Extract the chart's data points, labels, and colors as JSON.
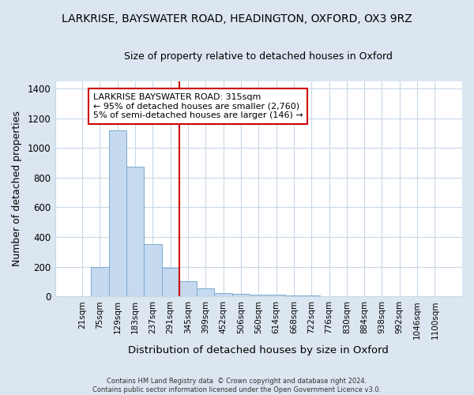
{
  "title_line1": "LARKRISE, BAYSWATER ROAD, HEADINGTON, OXFORD, OX3 9RZ",
  "title_line2": "Size of property relative to detached houses in Oxford",
  "xlabel": "Distribution of detached houses by size in Oxford",
  "ylabel": "Number of detached properties",
  "bar_labels": [
    "21sqm",
    "75sqm",
    "129sqm",
    "183sqm",
    "237sqm",
    "291sqm",
    "345sqm",
    "399sqm",
    "452sqm",
    "506sqm",
    "560sqm",
    "614sqm",
    "668sqm",
    "722sqm",
    "776sqm",
    "830sqm",
    "884sqm",
    "938sqm",
    "992sqm",
    "1046sqm",
    "1100sqm"
  ],
  "bar_values": [
    0,
    200,
    1120,
    875,
    350,
    195,
    100,
    55,
    20,
    15,
    10,
    10,
    5,
    5,
    0,
    0,
    0,
    0,
    0,
    0,
    0
  ],
  "bar_color": "#c5d9ef",
  "bar_edge_color": "#7aaccf",
  "vline_color": "#cc0000",
  "annotation_text": "LARKRISE BAYSWATER ROAD: 315sqm\n← 95% of detached houses are smaller (2,760)\n5% of semi-detached houses are larger (146) →",
  "annotation_box_color": "#ffffff",
  "annotation_box_edge": "#cc0000",
  "ylim": [
    0,
    1450
  ],
  "yticks": [
    0,
    200,
    400,
    600,
    800,
    1000,
    1200,
    1400
  ],
  "footer_text": "Contains HM Land Registry data  © Crown copyright and database right 2024.\nContains public sector information licensed under the Open Government Licence v3.0.",
  "figure_bg_color": "#dce6f0",
  "plot_bg_color": "#ffffff"
}
